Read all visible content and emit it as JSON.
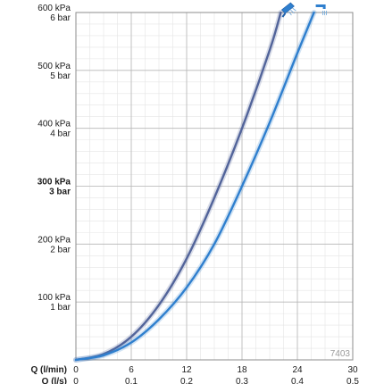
{
  "chart_data": {
    "type": "line",
    "title": "",
    "figure_number": "7403",
    "y_axis": {
      "range_kpa": [
        0,
        600
      ],
      "ticks": [
        {
          "value": 100,
          "kpa": "100 kPa",
          "bar": "1 bar",
          "bold": false
        },
        {
          "value": 200,
          "kpa": "200 kPa",
          "bar": "2 bar",
          "bold": false
        },
        {
          "value": 300,
          "kpa": "300 kPa",
          "bar": "3 bar",
          "bold": true
        },
        {
          "value": 400,
          "kpa": "400 kPa",
          "bar": "4 bar",
          "bold": false
        },
        {
          "value": 500,
          "kpa": "500 kPa",
          "bar": "5 bar",
          "bold": false
        },
        {
          "value": 600,
          "kpa": "600 kPa",
          "bar": "6 bar",
          "bold": false
        }
      ]
    },
    "x_axis": {
      "range_l_min": [
        0,
        30
      ],
      "label_primary": "Q (l/min)",
      "label_secondary": "Q (l/s)",
      "ticks_primary": [
        "0",
        "6",
        "12",
        "18",
        "24",
        "30"
      ],
      "ticks_secondary": [
        "0",
        "0.1",
        "0.2",
        "0.3",
        "0.4",
        "0.5"
      ],
      "tick_values": [
        0,
        6,
        12,
        18,
        24,
        30
      ]
    },
    "grid": true,
    "series": [
      {
        "icon": "handshower-icon",
        "color": "#52649a",
        "x": [
          0,
          3,
          6,
          9,
          12,
          15,
          18,
          21,
          22.2
        ],
        "y": [
          0,
          10,
          40,
          95,
          175,
          280,
          400,
          535,
          600
        ]
      },
      {
        "icon": "shower-outlet-icon",
        "color": "#2f7fce",
        "x": [
          0,
          3,
          6,
          9,
          12,
          15,
          18,
          21,
          24,
          25.8
        ],
        "y": [
          0,
          8,
          30,
          70,
          125,
          200,
          300,
          410,
          530,
          600
        ]
      }
    ]
  }
}
